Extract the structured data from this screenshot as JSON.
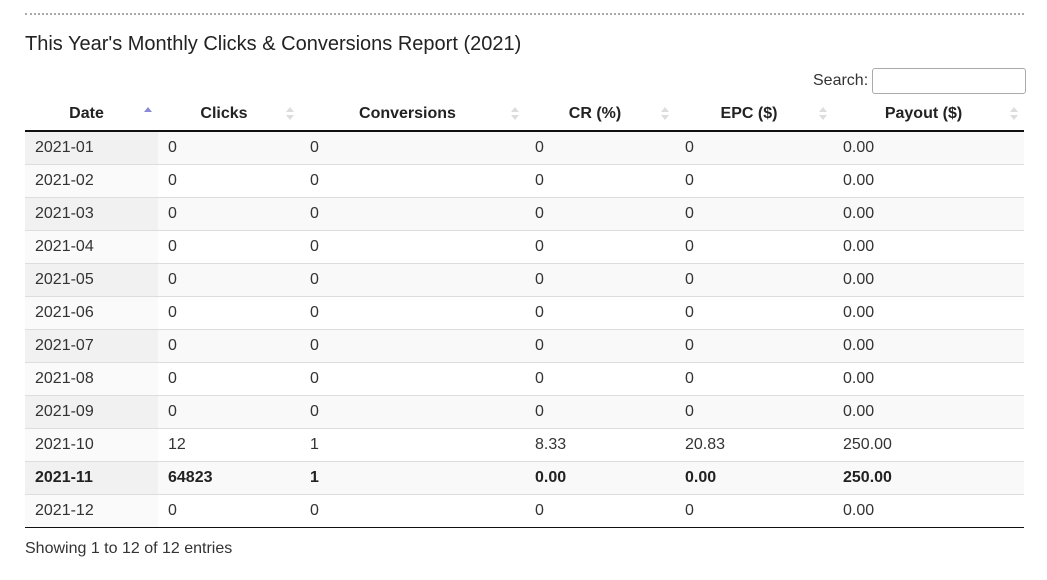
{
  "title": "This Year's Monthly Clicks & Conversions Report (2021)",
  "search_label": "Search:",
  "table": {
    "headers": [
      "Date",
      "Clicks",
      "Conversions",
      "CR (%)",
      "EPC ($)",
      "Payout ($)"
    ],
    "rows": [
      [
        "2021-01",
        "0",
        "0",
        "0",
        "0",
        "0.00"
      ],
      [
        "2021-02",
        "0",
        "0",
        "0",
        "0",
        "0.00"
      ],
      [
        "2021-03",
        "0",
        "0",
        "0",
        "0",
        "0.00"
      ],
      [
        "2021-04",
        "0",
        "0",
        "0",
        "0",
        "0.00"
      ],
      [
        "2021-05",
        "0",
        "0",
        "0",
        "0",
        "0.00"
      ],
      [
        "2021-06",
        "0",
        "0",
        "0",
        "0",
        "0.00"
      ],
      [
        "2021-07",
        "0",
        "0",
        "0",
        "0",
        "0.00"
      ],
      [
        "2021-08",
        "0",
        "0",
        "0",
        "0",
        "0.00"
      ],
      [
        "2021-09",
        "0",
        "0",
        "0",
        "0",
        "0.00"
      ],
      [
        "2021-10",
        "12",
        "1",
        "8.33",
        "20.83",
        "250.00"
      ],
      [
        "2021-11",
        "64823",
        "1",
        "0.00",
        "0.00",
        "250.00"
      ],
      [
        "2021-12",
        "0",
        "0",
        "0",
        "0",
        "0.00"
      ]
    ]
  },
  "footer": "Showing 1 to 12 of 12 entries"
}
